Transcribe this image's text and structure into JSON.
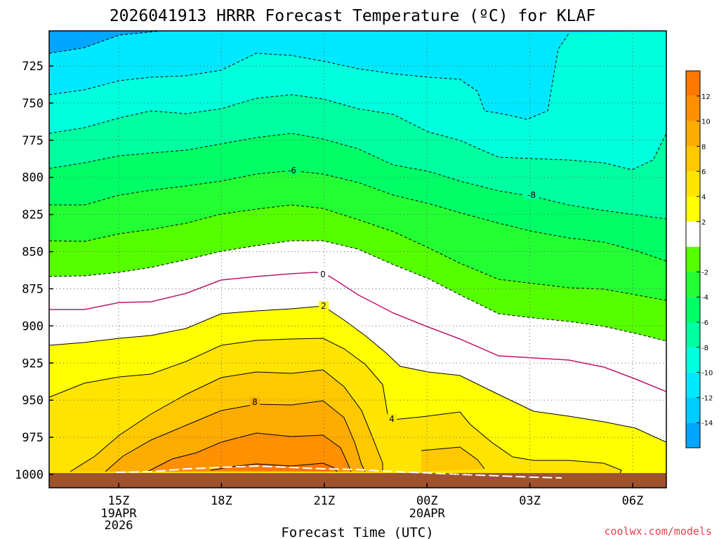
{
  "chart_data": {
    "type": "contour",
    "title": "2026041913 HRRR Forecast Temperature (ºC) for KLAF",
    "xlabel": "Forecast Time (UTC)",
    "ylabel": "",
    "y_ticks": [
      "725",
      "750",
      "775",
      "800",
      "825",
      "850",
      "875",
      "900",
      "925",
      "950",
      "975",
      "1000"
    ],
    "x_ticks": [
      {
        "label": "15Z",
        "sub": [
          "19APR",
          "2026"
        ]
      },
      {
        "label": "18Z",
        "sub": []
      },
      {
        "label": "21Z",
        "sub": []
      },
      {
        "label": "00Z",
        "sub": [
          "20APR"
        ]
      },
      {
        "label": "03Z",
        "sub": []
      },
      {
        "label": "06Z",
        "sub": []
      }
    ],
    "colorbar": {
      "ticks": [
        "12",
        "10",
        "8",
        "6",
        "4",
        "2",
        "-2",
        "-4",
        "-6",
        "-8",
        "-10",
        "-12",
        "-14"
      ],
      "colors": [
        "#00a6ff",
        "#00ccff",
        "#00e8ff",
        "#00ffdc",
        "#00ffa0",
        "#00ff66",
        "#22ff33",
        "#55ff00",
        "#ffffff",
        "#ffff00",
        "#ffe400",
        "#ffc800",
        "#ffac00",
        "#ff9000",
        "#ff7800"
      ]
    },
    "contour_labels": [
      "8",
      "4",
      "2",
      "0",
      "-6",
      "-8"
    ],
    "ground_color": "#a0522d"
  },
  "credit": "coolwx.com/models"
}
